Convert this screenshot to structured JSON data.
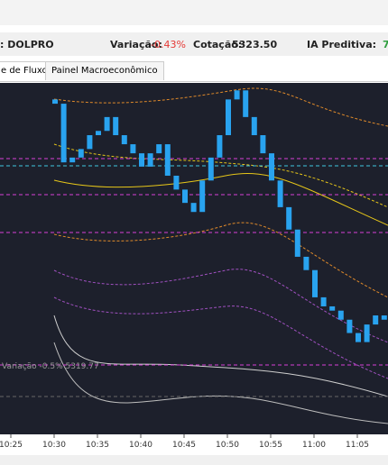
{
  "header": {
    "asset": ": DOLPRO",
    "variation_label": "Variação:",
    "variation": "-0.43%",
    "quote_label": "Cotação:",
    "quote": "5323.50",
    "ai_label": "IA Preditiva:",
    "ai_value": "7"
  },
  "tabs": [
    "e de Fluxo",
    "Painel Macroeconômico"
  ],
  "chart_data": {
    "type": "candlestick",
    "color": "#29a3ef",
    "open": [
      5323.19,
      5323.11,
      5322.01,
      5322.1,
      5322.26,
      5322.52,
      5322.6,
      5322.86,
      5322.52,
      5322.35,
      5322.18,
      5321.93,
      5322.18,
      5322.35,
      5321.76,
      5321.5,
      5321.25,
      5321.08,
      5321.67,
      5322.1,
      5322.52,
      5323.19,
      5323.36,
      5322.86,
      5322.52,
      5322.18,
      5321.67,
      5321.17,
      5320.75,
      5320.24,
      5319.99,
      5319.48,
      5319.31,
      5319.23,
      5319.06,
      5318.81,
      5318.64,
      5318.97,
      5319.14,
      5319.06
    ],
    "close": [
      5323.11,
      5322.01,
      5322.1,
      5322.26,
      5322.52,
      5322.6,
      5322.86,
      5322.52,
      5322.35,
      5322.18,
      5321.93,
      5322.18,
      5322.35,
      5321.76,
      5321.5,
      5321.25,
      5321.08,
      5321.67,
      5322.1,
      5322.52,
      5323.19,
      5323.36,
      5322.86,
      5322.52,
      5322.18,
      5321.67,
      5321.17,
      5320.75,
      5320.24,
      5319.99,
      5319.48,
      5319.31,
      5319.23,
      5319.06,
      5318.81,
      5318.64,
      5318.97,
      5319.14,
      5319.06,
      5318.89
    ],
    "ylim": [
      5316.91,
      5323.5
    ],
    "xticks": [
      "10:25",
      "10:30",
      "10:35",
      "10:40",
      "10:45",
      "10:50",
      "10:55",
      "11:00",
      "11:05"
    ],
    "annotation": "Variação -0.5% 5319.77"
  }
}
